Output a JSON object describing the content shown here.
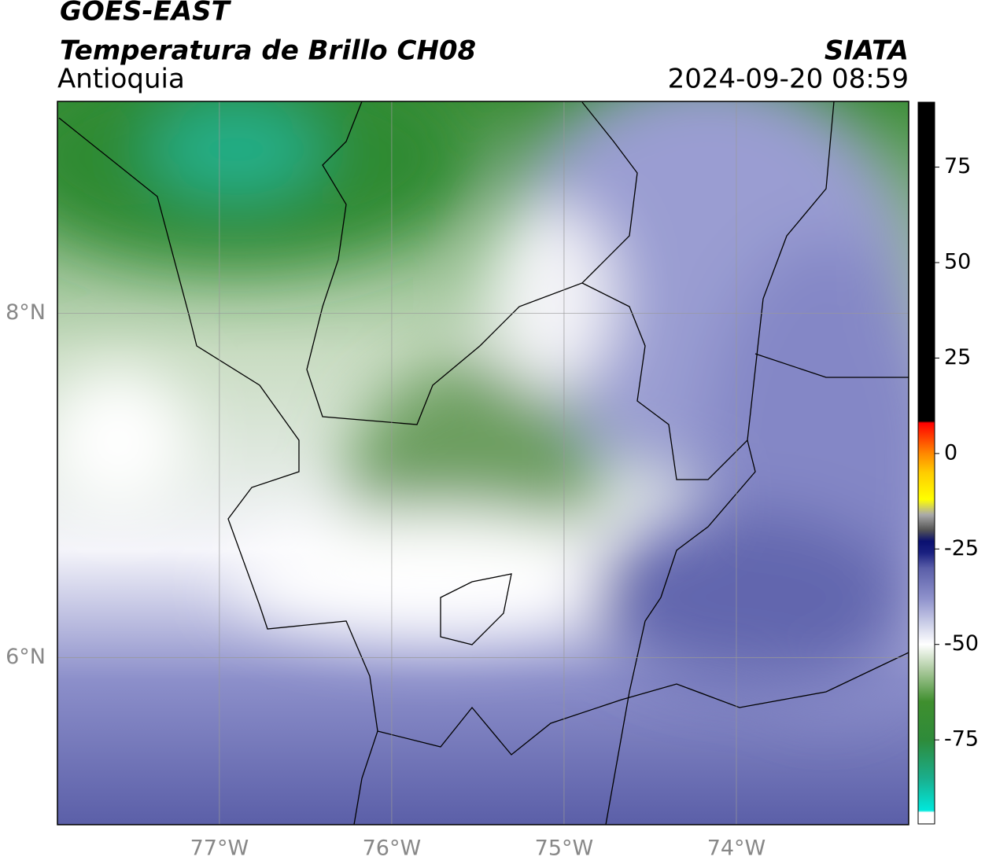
{
  "header": {
    "title": "GOES-EAST",
    "subtitle": "Temperatura de Brillo CH08",
    "region": "Antioquia",
    "source": "SIATA",
    "datetime": "2024-09-20 08:59"
  },
  "map": {
    "xlim": [
      -77.94,
      -73.0
    ],
    "ylim": [
      5.03,
      9.23
    ],
    "xticks": [
      {
        "value": -77,
        "label": "77°W"
      },
      {
        "value": -76,
        "label": "76°W"
      },
      {
        "value": -75,
        "label": "75°W"
      },
      {
        "value": -74,
        "label": "74°W"
      }
    ],
    "yticks": [
      {
        "value": 8,
        "label": "8°N"
      },
      {
        "value": 6,
        "label": "6°N"
      }
    ],
    "grid": true
  },
  "colorbar": {
    "lim": [
      -97,
      92
    ],
    "ticks": [
      75,
      50,
      25,
      0,
      -25,
      -50,
      -75
    ],
    "colors": [
      {
        "value": -97,
        "color": "#ffffff"
      },
      {
        "value": -94,
        "color": "#ffffff"
      },
      {
        "value": -93.5,
        "color": "#00e8dc"
      },
      {
        "value": -85,
        "color": "#1aae8c"
      },
      {
        "value": -75,
        "color": "#2e8b3a"
      },
      {
        "value": -65,
        "color": "#3f8f2e"
      },
      {
        "value": -57,
        "color": "#a8c89a"
      },
      {
        "value": -50,
        "color": "#ffffff"
      },
      {
        "value": -45,
        "color": "#d0d3ea"
      },
      {
        "value": -38,
        "color": "#8f92cc"
      },
      {
        "value": -30,
        "color": "#5a5ea8"
      },
      {
        "value": -26,
        "color": "#1a2080"
      },
      {
        "value": -23,
        "color": "#0a1070"
      },
      {
        "value": -20,
        "color": "#555555"
      },
      {
        "value": -16,
        "color": "#aaaaaa"
      },
      {
        "value": -12,
        "color": "#ffff00"
      },
      {
        "value": -5,
        "color": "#ffcc00"
      },
      {
        "value": 0,
        "color": "#ff8800"
      },
      {
        "value": 8,
        "color": "#ff0000"
      },
      {
        "value": 8.5,
        "color": "#000000"
      },
      {
        "value": 92,
        "color": "#000000"
      }
    ]
  }
}
